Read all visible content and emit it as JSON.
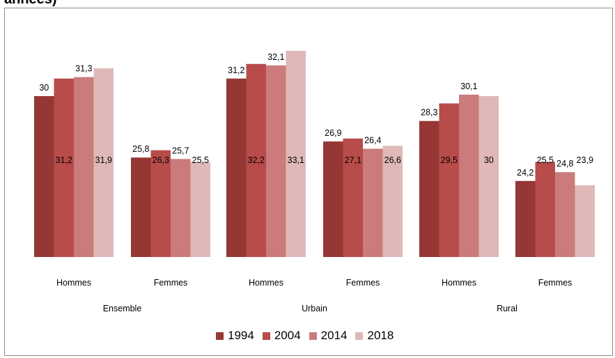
{
  "title_fragment": "années)",
  "colors": {
    "1994": "#953735",
    "2004": "#b84c4a",
    "2014": "#cb7b7b",
    "2018": "#e0b8b8"
  },
  "chart_data": {
    "type": "bar",
    "groups": [
      "Ensemble",
      "Urbain",
      "Rural"
    ],
    "categories": [
      "Hommes",
      "Femmes",
      "Hommes",
      "Femmes",
      "Hommes",
      "Femmes"
    ],
    "category_group": [
      "Ensemble",
      "Ensemble",
      "Urbain",
      "Urbain",
      "Rural",
      "Rural"
    ],
    "series": [
      {
        "name": "1994",
        "values": [
          30,
          25.8,
          31.2,
          26.9,
          28.3,
          24.2
        ]
      },
      {
        "name": "2004",
        "values": [
          31.2,
          26.3,
          32.2,
          27.1,
          29.5,
          25.5
        ]
      },
      {
        "name": "2014",
        "values": [
          31.3,
          25.7,
          32.1,
          26.4,
          30.1,
          24.8
        ]
      },
      {
        "name": "2018",
        "values": [
          31.9,
          25.5,
          33.1,
          26.6,
          30,
          23.9
        ]
      }
    ],
    "data_labels": [
      [
        "30",
        "25,8",
        "31,2",
        "26,9",
        "28,3",
        "24,2"
      ],
      [
        "31,2",
        "26,3",
        "32,2",
        "27,1",
        "29,5",
        "25,5"
      ],
      [
        "31,3",
        "25,7",
        "32,1",
        "26,4",
        "30,1",
        "24,8"
      ],
      [
        "31,9",
        "25,5",
        "33,1",
        "26,6",
        "30",
        "23,9"
      ]
    ],
    "label_position": [
      "above",
      "inside",
      "above",
      "inside"
    ],
    "legend_position": "bottom",
    "grid": false,
    "ylim": [
      19,
      34
    ]
  }
}
